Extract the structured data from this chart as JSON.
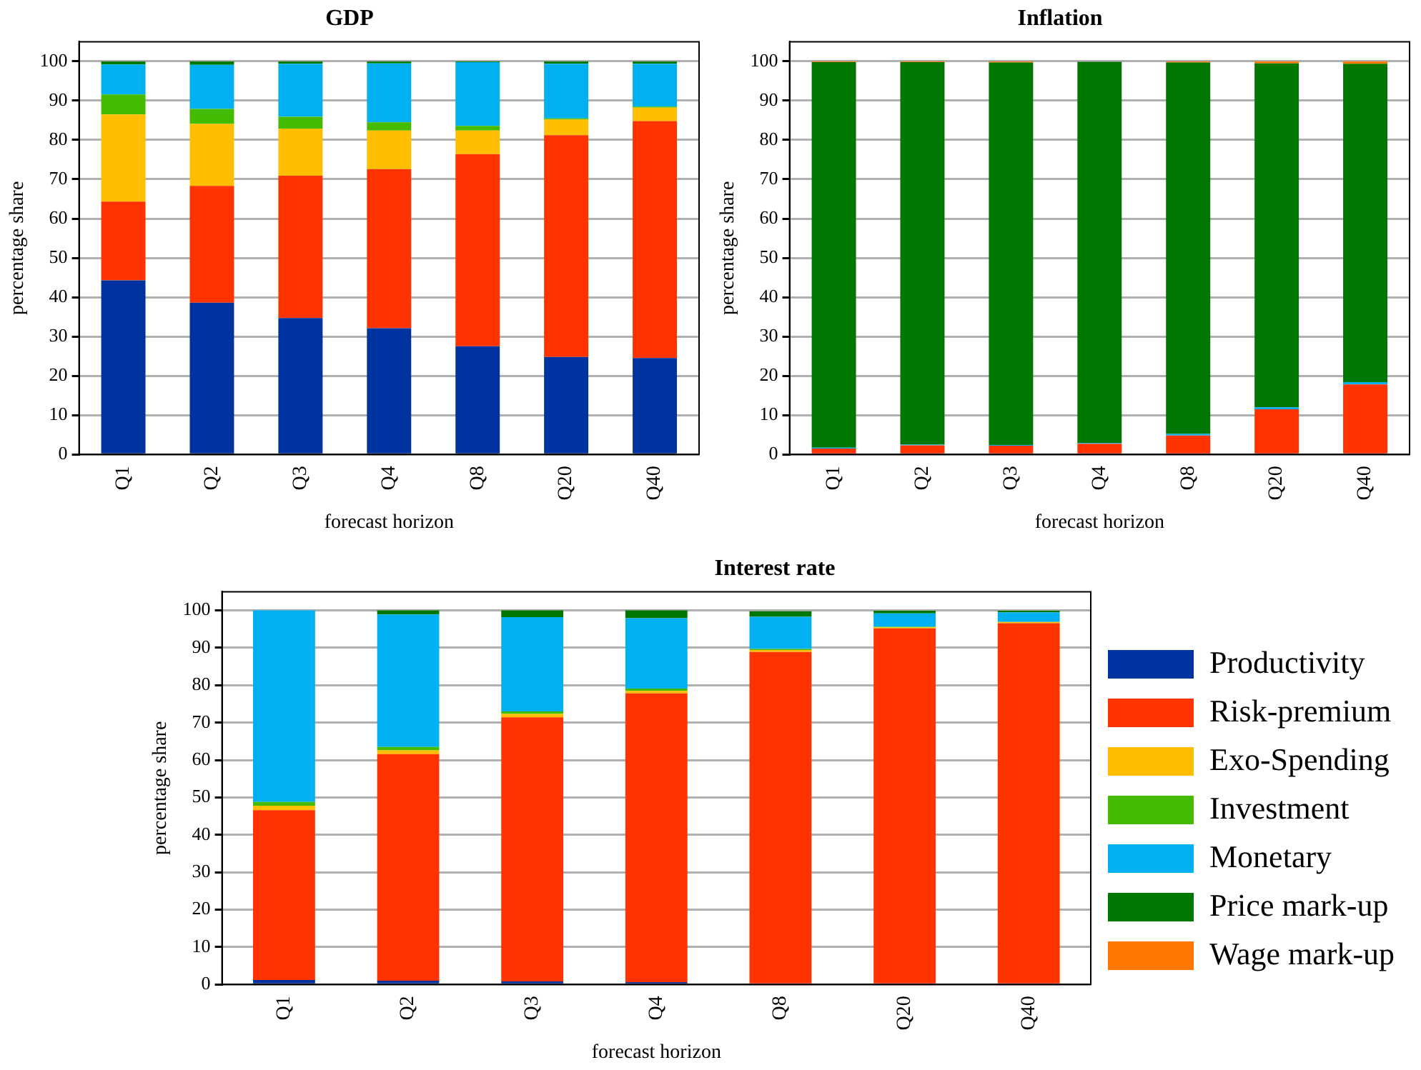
{
  "chart_data": [
    {
      "type": "bar",
      "title": "GDP",
      "xlabel": "forecast horizon",
      "ylabel": "percentage share",
      "categories": [
        "Q1",
        "Q2",
        "Q3",
        "Q4",
        "Q8",
        "Q20",
        "Q40"
      ],
      "stacked": true,
      "ylim": [
        0,
        105
      ],
      "yticks": [
        0,
        10,
        20,
        30,
        40,
        50,
        60,
        70,
        80,
        90,
        100
      ],
      "grid": "y",
      "legend": false,
      "series": [
        {
          "color": "#0033a0",
          "values": [
            44.3,
            38.6,
            34.7,
            32.1,
            27.5,
            24.8,
            24.5
          ]
        },
        {
          "color": "#ff3300",
          "values": [
            20,
            29.7,
            36.2,
            40.5,
            48.9,
            56.4,
            60.3
          ]
        },
        {
          "color": "#ffbf00",
          "values": [
            22.2,
            15.8,
            12,
            9.8,
            6,
            4,
            3.4
          ]
        },
        {
          "color": "#44bb00",
          "values": [
            5.1,
            3.8,
            3,
            2.1,
            1.2,
            0.3,
            0.3
          ]
        },
        {
          "color": "#00b0f0",
          "values": [
            7.6,
            11.2,
            13.5,
            15,
            16.2,
            13.9,
            10.9
          ]
        },
        {
          "color": "#007700",
          "values": [
            0.8,
            0.9,
            0.6,
            0.5,
            0.2,
            0.6,
            0.6
          ]
        }
      ]
    },
    {
      "type": "bar",
      "title": "Inflation",
      "xlabel": "forecast horizon",
      "ylabel": "percentage share",
      "categories": [
        "Q1",
        "Q2",
        "Q3",
        "Q4",
        "Q8",
        "Q20",
        "Q40"
      ],
      "stacked": true,
      "ylim": [
        0,
        105
      ],
      "yticks": [
        0,
        10,
        20,
        30,
        40,
        50,
        60,
        70,
        80,
        90,
        100
      ],
      "grid": "y",
      "legend": false,
      "series": [
        {
          "color": "#ff3300",
          "values": [
            1.5,
            2.3,
            2.2,
            2.7,
            4.8,
            11.5,
            17.8
          ]
        },
        {
          "color": "#00b0f0",
          "values": [
            0.2,
            0.2,
            0.2,
            0.2,
            0.4,
            0.5,
            0.6
          ]
        },
        {
          "color": "#007700",
          "values": [
            98.1,
            97.3,
            97.3,
            97.0,
            94.5,
            87.5,
            81.0
          ]
        },
        {
          "color": "#ff7700",
          "values": [
            0.2,
            0.2,
            0.3,
            null,
            0.3,
            0.5,
            0.6
          ]
        }
      ]
    },
    {
      "type": "bar",
      "title": "Interest rate",
      "xlabel": "forecast horizon",
      "ylabel": "percentage share",
      "categories": [
        "Q1",
        "Q2",
        "Q3",
        "Q4",
        "Q8",
        "Q20",
        "Q40"
      ],
      "stacked": true,
      "ylim": [
        0,
        105
      ],
      "yticks": [
        0,
        10,
        20,
        30,
        40,
        50,
        60,
        70,
        80,
        90,
        100
      ],
      "grid": "y",
      "legend": "right",
      "series": [
        {
          "name": "Productivity",
          "color": "#0033a0",
          "values": [
            1.2,
            1.0,
            0.8,
            0.6,
            null,
            null,
            null
          ]
        },
        {
          "name": "Risk-premium",
          "color": "#ff3300",
          "values": [
            45.4,
            60.6,
            70.6,
            77.2,
            88.9,
            95.2,
            96.6
          ]
        },
        {
          "name": "Exo-Spending",
          "color": "#ffbf00",
          "values": [
            1.2,
            1.0,
            0.9,
            0.7,
            0.5,
            0.3,
            0.3
          ]
        },
        {
          "name": "Investment",
          "color": "#44bb00",
          "values": [
            1.0,
            0.9,
            0.7,
            0.6,
            0.3,
            0.1,
            0
          ]
        },
        {
          "name": "Monetary",
          "color": "#00b0f0",
          "values": [
            51.2,
            35.4,
            25.2,
            18.8,
            8.6,
            3.6,
            2.6
          ]
        },
        {
          "name": "Price mark-up",
          "color": "#007700",
          "values": [
            0,
            1.1,
            1.8,
            2.1,
            1.5,
            0.7,
            0.4
          ]
        },
        {
          "name": "Wage mark-up",
          "color": "#ff7700",
          "values": [
            0,
            0,
            0,
            0,
            0,
            0,
            0
          ]
        }
      ]
    }
  ]
}
